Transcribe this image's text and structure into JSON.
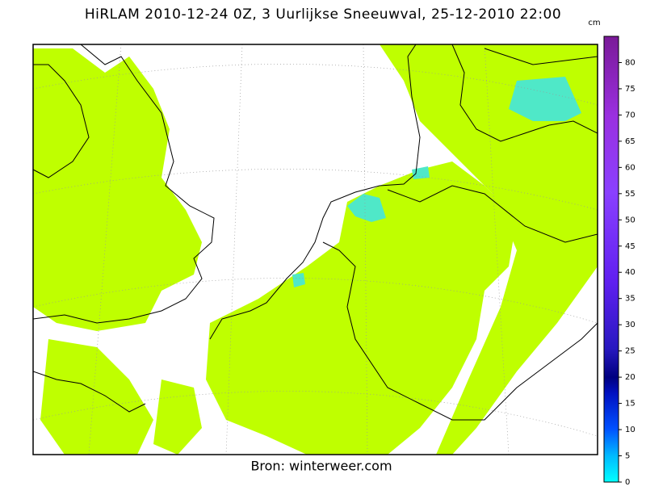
{
  "title": "HiRLAM 2010-12-24 0Z, 3 Uurlijkse Sneeuwval, 25-12-2010 22:00",
  "source": "Bron: winterweer.com",
  "colorbar": {
    "unit": "cm",
    "lim": [
      0,
      85
    ],
    "ticks": [
      0,
      5,
      10,
      15,
      20,
      25,
      30,
      35,
      40,
      45,
      50,
      55,
      60,
      65,
      70,
      75,
      80
    ]
  }
}
